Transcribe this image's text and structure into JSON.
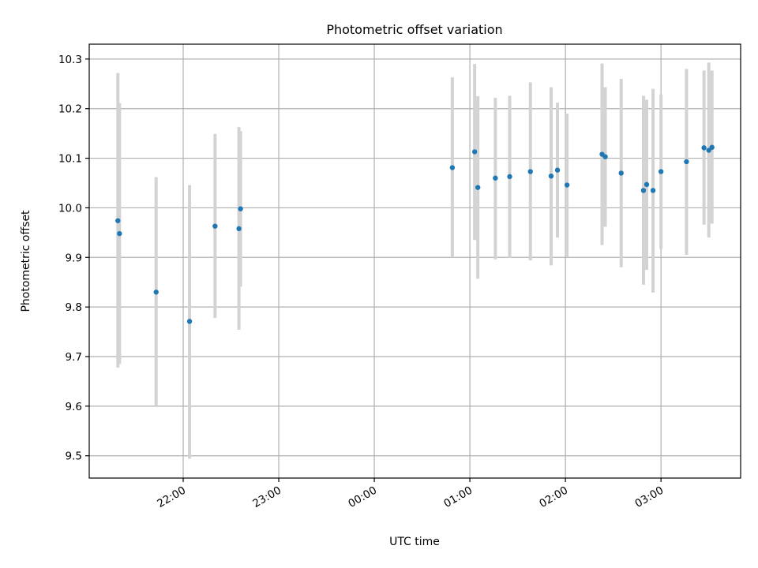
{
  "chart_data": {
    "type": "scatter",
    "title": "Photometric offset variation",
    "xlabel": "UTC time",
    "ylabel": "Photometric offset",
    "x_ticks": [
      "22:00",
      "23:00",
      "00:00",
      "01:00",
      "02:00",
      "03:00"
    ],
    "x_tick_minutes": [
      1320,
      1380,
      1440,
      1500,
      1560,
      1620
    ],
    "xlim_minutes": [
      1261,
      1670
    ],
    "y_ticks": [
      "9.5",
      "9.6",
      "9.7",
      "9.8",
      "9.9",
      "10.0",
      "10.1",
      "10.2",
      "10.3"
    ],
    "y_tick_values": [
      9.5,
      9.6,
      9.7,
      9.8,
      9.9,
      10.0,
      10.1,
      10.2,
      10.3
    ],
    "ylim": [
      9.455,
      10.33
    ],
    "grid": true,
    "colors": {
      "point": "#1f77b4",
      "error_bar": "#d3d3d3"
    },
    "points": [
      {
        "time": "21:19",
        "y": 9.974,
        "yerr_low": 9.678,
        "yerr_high": 10.272
      },
      {
        "time": "21:20",
        "y": 9.948,
        "yerr_low": 9.685,
        "yerr_high": 10.211
      },
      {
        "time": "21:43",
        "y": 9.83,
        "yerr_low": 9.6,
        "yerr_high": 10.062
      },
      {
        "time": "22:04",
        "y": 9.771,
        "yerr_low": 9.494,
        "yerr_high": 10.046
      },
      {
        "time": "22:20",
        "y": 9.963,
        "yerr_low": 9.778,
        "yerr_high": 10.149
      },
      {
        "time": "22:35",
        "y": 9.958,
        "yerr_low": 9.754,
        "yerr_high": 10.163
      },
      {
        "time": "22:36",
        "y": 9.998,
        "yerr_low": 9.841,
        "yerr_high": 10.155
      },
      {
        "time": "00:49",
        "y": 10.081,
        "yerr_low": 9.9,
        "yerr_high": 10.263
      },
      {
        "time": "01:03",
        "y": 10.113,
        "yerr_low": 9.935,
        "yerr_high": 10.29
      },
      {
        "time": "01:05",
        "y": 10.041,
        "yerr_low": 9.857,
        "yerr_high": 10.225
      },
      {
        "time": "01:16",
        "y": 10.06,
        "yerr_low": 9.896,
        "yerr_high": 10.222
      },
      {
        "time": "01:25",
        "y": 10.063,
        "yerr_low": 9.899,
        "yerr_high": 10.226
      },
      {
        "time": "01:38",
        "y": 10.073,
        "yerr_low": 9.894,
        "yerr_high": 10.253
      },
      {
        "time": "01:51",
        "y": 10.064,
        "yerr_low": 9.884,
        "yerr_high": 10.243
      },
      {
        "time": "01:55",
        "y": 10.076,
        "yerr_low": 9.94,
        "yerr_high": 10.212
      },
      {
        "time": "02:01",
        "y": 10.046,
        "yerr_low": 9.901,
        "yerr_high": 10.19
      },
      {
        "time": "02:23",
        "y": 10.108,
        "yerr_low": 9.925,
        "yerr_high": 10.291
      },
      {
        "time": "02:25",
        "y": 10.103,
        "yerr_low": 9.962,
        "yerr_high": 10.243
      },
      {
        "time": "02:35",
        "y": 10.07,
        "yerr_low": 9.88,
        "yerr_high": 10.26
      },
      {
        "time": "02:49",
        "y": 10.035,
        "yerr_low": 9.845,
        "yerr_high": 10.226
      },
      {
        "time": "02:51",
        "y": 10.047,
        "yerr_low": 9.875,
        "yerr_high": 10.218
      },
      {
        "time": "02:55",
        "y": 10.035,
        "yerr_low": 9.829,
        "yerr_high": 10.24
      },
      {
        "time": "03:00",
        "y": 10.073,
        "yerr_low": 9.917,
        "yerr_high": 10.229
      },
      {
        "time": "03:16",
        "y": 10.093,
        "yerr_low": 9.905,
        "yerr_high": 10.28
      },
      {
        "time": "03:27",
        "y": 10.121,
        "yerr_low": 9.966,
        "yerr_high": 10.277
      },
      {
        "time": "03:30",
        "y": 10.116,
        "yerr_low": 9.94,
        "yerr_high": 10.293
      },
      {
        "time": "03:32",
        "y": 10.122,
        "yerr_low": 9.968,
        "yerr_high": 10.277
      }
    ]
  }
}
